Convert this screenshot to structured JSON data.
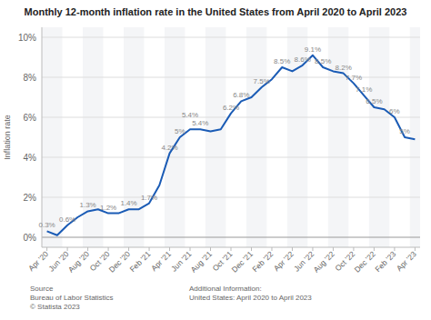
{
  "chart_data": {
    "type": "line",
    "title": "Monthly 12-month inflation rate in the United States from April 2020 to April 2023",
    "y_label": "Inflation rate",
    "color": "#1a5bb5",
    "grid": true,
    "data_labels": true,
    "ylim": [
      -0.5,
      10.5
    ],
    "yticks": [
      {
        "value": 0,
        "label": "0%"
      },
      {
        "value": 2,
        "label": "2%"
      },
      {
        "value": 4,
        "label": "4%"
      },
      {
        "value": 6,
        "label": "6%"
      },
      {
        "value": 8,
        "label": "8%"
      },
      {
        "value": 10,
        "label": "10%"
      }
    ],
    "categories": [
      "Apr '20",
      null,
      "Jun '20",
      null,
      "Aug '20",
      null,
      "Oct '20",
      null,
      "Dec '20",
      null,
      "Feb '21",
      null,
      "Apr '21",
      null,
      "Jun '21",
      null,
      "Aug '21",
      null,
      "Oct '21",
      null,
      "Dec '21",
      null,
      "Feb '22",
      null,
      "Apr '22",
      null,
      "Jun '22",
      null,
      "Aug '22",
      null,
      "Oct '22",
      null,
      "Dec '22",
      null,
      "Feb '23",
      null,
      "Apr '23"
    ],
    "values": [
      0.3,
      0.1,
      0.6,
      1.0,
      1.3,
      1.4,
      1.2,
      1.2,
      1.4,
      1.4,
      1.7,
      2.6,
      4.2,
      5.0,
      5.4,
      5.4,
      5.3,
      5.4,
      6.2,
      6.8,
      7.0,
      7.5,
      7.9,
      8.5,
      8.3,
      8.6,
      9.1,
      8.5,
      8.3,
      8.2,
      7.7,
      7.1,
      6.5,
      6.4,
      6.0,
      5.0,
      4.9
    ],
    "value_labels": [
      "0.3%",
      null,
      "0.6%",
      null,
      "1.3%",
      null,
      "1.2%",
      null,
      "1.4%",
      null,
      "1.7%",
      null,
      "4.2%",
      "5%",
      "5.4%",
      "5.4%",
      null,
      null,
      "6.2%",
      "6.8%",
      null,
      "7.5%",
      null,
      "8.5%",
      null,
      "8.6%",
      "9.1%",
      "8.5%",
      null,
      "8.2%",
      "7.7%",
      "7.1%",
      "6.5%",
      null,
      "6%",
      "5%",
      null
    ],
    "source": "Source\nBureau of Labor Statistics\n© Statista 2023",
    "note": "Additional Information:\nUnited States: April 2020 to April 2023"
  }
}
